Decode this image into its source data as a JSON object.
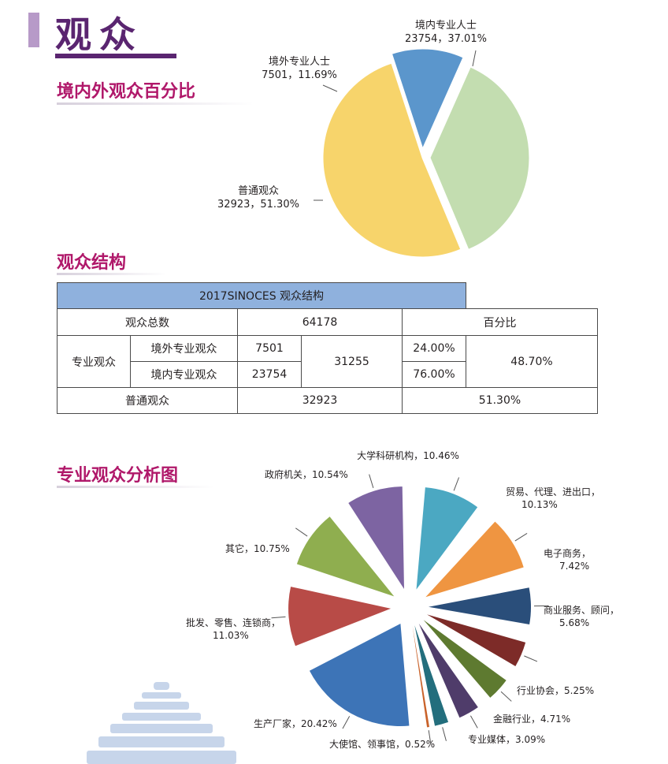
{
  "header": {
    "title": "观众"
  },
  "sections": {
    "pie1_title": "境内外观众百分比",
    "table_title": "观众结构",
    "pie2_title": "专业观众分析图"
  },
  "table": {
    "caption": "2017SINOCES 观众结构",
    "total_label": "观众总数",
    "total_value": "64178",
    "percent_header": "百分比",
    "pro_label": "专业观众",
    "overseas_label": "境外专业观众",
    "overseas_value": "7501",
    "domestic_label": "境内专业观众",
    "domestic_value": "23754",
    "pro_total": "31255",
    "overseas_pct": "24.00%",
    "domestic_pct": "76.00%",
    "pro_pct": "48.70%",
    "general_label": "普通观众",
    "general_value": "32923",
    "general_pct": "51.30%"
  },
  "chart_data": [
    {
      "type": "pie",
      "title": "境内外观众百分比",
      "slices": [
        {
          "name": "境内专业人士",
          "value": 23754,
          "label": "23754，37.01%",
          "percent": 37.01,
          "color": "#c3ddb0"
        },
        {
          "name": "普通观众",
          "value": 32923,
          "label": "32923，51.30%",
          "percent": 51.3,
          "color": "#f7d46b"
        },
        {
          "name": "境外专业人士",
          "value": 7501,
          "label": "7501，11.69%",
          "percent": 11.69,
          "color": "#5b96cc"
        }
      ]
    },
    {
      "type": "pie",
      "title": "专业观众分析图",
      "slices": [
        {
          "name": "大学科研机构",
          "label": "大学科研机构，10.46%",
          "percent": 10.46,
          "color": "#4ba8c2"
        },
        {
          "name": "贸易、代理、进出口",
          "label": "贸易、代理、进出口，",
          "label2": "10.13%",
          "percent": 10.13,
          "color": "#ef9541"
        },
        {
          "name": "电子商务",
          "label": "电子商务，",
          "label2": "7.42%",
          "percent": 7.42,
          "color": "#2a4e7a"
        },
        {
          "name": "商业服务、顾问",
          "label": "商业服务、顾问，",
          "label2": "5.68%",
          "percent": 5.68,
          "color": "#7d2b28"
        },
        {
          "name": "行业协会",
          "label": "行业协会，5.25%",
          "percent": 5.25,
          "color": "#5e7a30"
        },
        {
          "name": "金融行业",
          "label": "金融行业，4.71%",
          "percent": 4.71,
          "color": "#4f3c6a"
        },
        {
          "name": "专业媒体",
          "label": "专业媒体，3.09%",
          "percent": 3.09,
          "color": "#236e7d"
        },
        {
          "name": "大使馆、领事馆",
          "label": "大使馆、领事馆，0.52%",
          "percent": 0.52,
          "color": "#c9622a"
        },
        {
          "name": "生产厂家",
          "label": "生产厂家，20.42%",
          "percent": 20.42,
          "color": "#3d74b7"
        },
        {
          "name": "批发、零售、连锁商",
          "label": "批发、零售、连锁商，",
          "label2": "11.03%",
          "percent": 11.03,
          "color": "#b84b47"
        },
        {
          "name": "其它",
          "label": "其它，10.75%",
          "percent": 10.75,
          "color": "#8fae4f"
        },
        {
          "name": "政府机关",
          "label": "政府机关，10.54%",
          "percent": 10.54,
          "color": "#7d64a2"
        }
      ]
    }
  ]
}
